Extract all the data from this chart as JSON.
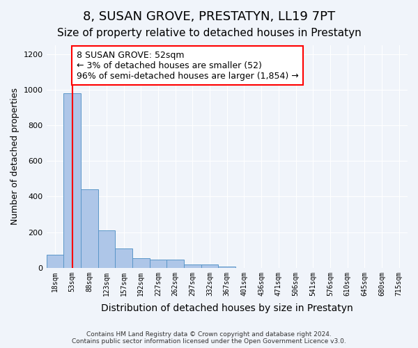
{
  "title1": "8, SUSAN GROVE, PRESTATYN, LL19 7PT",
  "title2": "Size of property relative to detached houses in Prestatyn",
  "xlabel": "Distribution of detached houses by size in Prestatyn",
  "ylabel": "Number of detached properties",
  "footer": "Contains HM Land Registry data © Crown copyright and database right 2024.\nContains public sector information licensed under the Open Government Licence v3.0.",
  "bin_labels": [
    "18sqm",
    "53sqm",
    "88sqm",
    "123sqm",
    "157sqm",
    "192sqm",
    "227sqm",
    "262sqm",
    "297sqm",
    "332sqm",
    "367sqm",
    "401sqm",
    "436sqm",
    "471sqm",
    "506sqm",
    "541sqm",
    "576sqm",
    "610sqm",
    "645sqm",
    "680sqm",
    "715sqm"
  ],
  "bar_values": [
    75,
    980,
    440,
    210,
    110,
    55,
    45,
    45,
    20,
    18,
    5,
    0,
    0,
    0,
    0,
    0,
    0,
    0,
    0,
    0,
    0
  ],
  "bar_color": "#aec6e8",
  "bar_edge_color": "#5a96c8",
  "red_line_x": 1,
  "annotation_text": "8 SUSAN GROVE: 52sqm\n← 3% of detached houses are smaller (52)\n96% of semi-detached houses are larger (1,854) →",
  "annotation_box_color": "white",
  "annotation_box_edge_color": "red",
  "ylim": [
    0,
    1250
  ],
  "yticks": [
    0,
    200,
    400,
    600,
    800,
    1000,
    1200
  ],
  "background_color": "#f0f4fa",
  "plot_bg_color": "#f0f4fa",
  "grid_color": "white",
  "title1_fontsize": 13,
  "title2_fontsize": 11,
  "xlabel_fontsize": 10,
  "ylabel_fontsize": 9,
  "annotation_fontsize": 9
}
